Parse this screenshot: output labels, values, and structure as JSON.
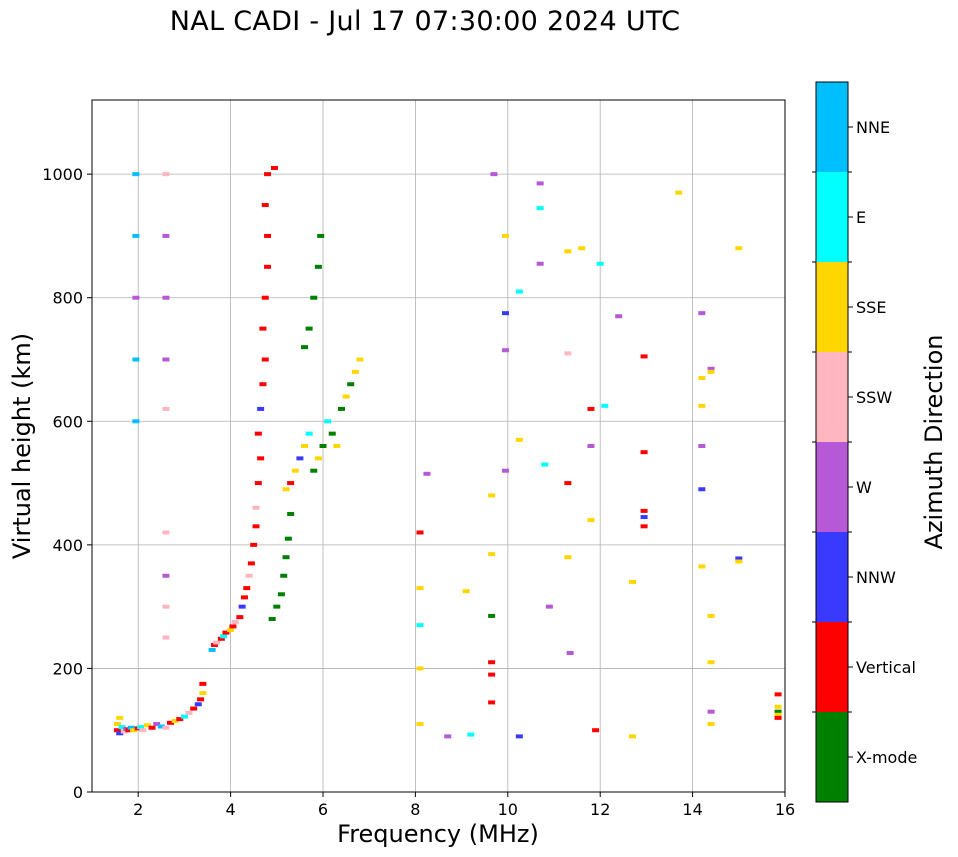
{
  "chart_data": {
    "type": "scatter",
    "title": "NAL CADI - Jul 17 07:30:00 2024 UTC",
    "xlabel": "Frequency (MHz)",
    "ylabel": "Virtual height (km)",
    "xlim": [
      1,
      16
    ],
    "ylim": [
      0,
      1120
    ],
    "xticks": [
      2,
      4,
      6,
      8,
      10,
      12,
      14,
      16
    ],
    "yticks": [
      0,
      200,
      400,
      600,
      800,
      1000
    ],
    "grid": true,
    "colorbar": {
      "label": "Azimuth Direction",
      "categories": [
        "X-mode",
        "Vertical",
        "NNW",
        "W",
        "SSW",
        "SSE",
        "E",
        "NNE"
      ],
      "colors": {
        "X-mode": "#008000",
        "Vertical": "#ff0000",
        "NNW": "#3a3aff",
        "W": "#b559d6",
        "SSW": "#ffb6c1",
        "SSE": "#ffd700",
        "E": "#00ffff",
        "NNE": "#00bfff"
      }
    },
    "points": [
      [
        1.55,
        100,
        "Vertical"
      ],
      [
        1.55,
        110,
        "SSE"
      ],
      [
        1.6,
        95,
        "NNW"
      ],
      [
        1.65,
        105,
        "E"
      ],
      [
        1.6,
        120,
        "SSE"
      ],
      [
        1.7,
        98,
        "SSW"
      ],
      [
        1.75,
        102,
        "W"
      ],
      [
        1.8,
        100,
        "Vertical"
      ],
      [
        1.85,
        104,
        "NNE"
      ],
      [
        1.9,
        100,
        "SSE"
      ],
      [
        2.0,
        103,
        "Vertical"
      ],
      [
        2.05,
        105,
        "E"
      ],
      [
        2.1,
        100,
        "SSW"
      ],
      [
        2.2,
        108,
        "SSE"
      ],
      [
        2.3,
        104,
        "Vertical"
      ],
      [
        2.4,
        110,
        "W"
      ],
      [
        2.5,
        106,
        "NNE"
      ],
      [
        2.6,
        104,
        "SSW"
      ],
      [
        2.7,
        112,
        "Vertical"
      ],
      [
        2.8,
        115,
        "SSE"
      ],
      [
        2.9,
        118,
        "Vertical"
      ],
      [
        3.0,
        122,
        "E"
      ],
      [
        3.1,
        128,
        "SSW"
      ],
      [
        3.2,
        135,
        "Vertical"
      ],
      [
        3.3,
        142,
        "NNW"
      ],
      [
        3.35,
        150,
        "Vertical"
      ],
      [
        3.4,
        160,
        "SSE"
      ],
      [
        3.4,
        175,
        "Vertical"
      ],
      [
        3.6,
        230,
        "NNE"
      ],
      [
        3.65,
        238,
        "Vertical"
      ],
      [
        3.7,
        242,
        "SSW"
      ],
      [
        3.8,
        248,
        "Vertical"
      ],
      [
        3.85,
        252,
        "E"
      ],
      [
        3.9,
        258,
        "Vertical"
      ],
      [
        4.0,
        262,
        "SSE"
      ],
      [
        4.05,
        268,
        "Vertical"
      ],
      [
        4.1,
        275,
        "SSW"
      ],
      [
        4.2,
        283,
        "Vertical"
      ],
      [
        4.25,
        300,
        "NNW"
      ],
      [
        4.3,
        315,
        "Vertical"
      ],
      [
        4.35,
        330,
        "Vertical"
      ],
      [
        4.4,
        350,
        "SSW"
      ],
      [
        4.45,
        370,
        "Vertical"
      ],
      [
        4.5,
        400,
        "Vertical"
      ],
      [
        4.55,
        430,
        "Vertical"
      ],
      [
        4.55,
        460,
        "SSW"
      ],
      [
        4.6,
        500,
        "Vertical"
      ],
      [
        4.65,
        540,
        "Vertical"
      ],
      [
        4.6,
        580,
        "Vertical"
      ],
      [
        4.65,
        620,
        "NNW"
      ],
      [
        4.7,
        660,
        "Vertical"
      ],
      [
        4.75,
        700,
        "Vertical"
      ],
      [
        4.7,
        750,
        "Vertical"
      ],
      [
        4.75,
        800,
        "Vertical"
      ],
      [
        4.8,
        850,
        "Vertical"
      ],
      [
        4.8,
        900,
        "Vertical"
      ],
      [
        4.75,
        950,
        "Vertical"
      ],
      [
        4.8,
        1000,
        "Vertical"
      ],
      [
        4.95,
        1010,
        "Vertical"
      ],
      [
        4.9,
        280,
        "X-mode"
      ],
      [
        5.0,
        300,
        "X-mode"
      ],
      [
        5.1,
        320,
        "X-mode"
      ],
      [
        5.15,
        350,
        "X-mode"
      ],
      [
        5.2,
        380,
        "X-mode"
      ],
      [
        5.25,
        410,
        "X-mode"
      ],
      [
        5.3,
        450,
        "X-mode"
      ],
      [
        5.2,
        490,
        "SSE"
      ],
      [
        5.3,
        500,
        "Vertical"
      ],
      [
        5.4,
        520,
        "SSE"
      ],
      [
        5.5,
        540,
        "NNW"
      ],
      [
        5.6,
        560,
        "SSE"
      ],
      [
        5.7,
        580,
        "E"
      ],
      [
        5.8,
        520,
        "X-mode"
      ],
      [
        5.9,
        540,
        "SSE"
      ],
      [
        6.0,
        560,
        "X-mode"
      ],
      [
        6.1,
        600,
        "E"
      ],
      [
        6.2,
        580,
        "X-mode"
      ],
      [
        6.3,
        560,
        "SSE"
      ],
      [
        6.4,
        620,
        "X-mode"
      ],
      [
        6.5,
        640,
        "SSE"
      ],
      [
        6.6,
        660,
        "X-mode"
      ],
      [
        6.7,
        680,
        "SSE"
      ],
      [
        6.8,
        700,
        "SSE"
      ],
      [
        5.6,
        720,
        "X-mode"
      ],
      [
        5.7,
        750,
        "X-mode"
      ],
      [
        5.8,
        800,
        "X-mode"
      ],
      [
        5.9,
        850,
        "X-mode"
      ],
      [
        5.95,
        900,
        "X-mode"
      ],
      [
        1.95,
        1000,
        "NNE"
      ],
      [
        1.95,
        900,
        "NNE"
      ],
      [
        1.95,
        800,
        "W"
      ],
      [
        1.95,
        700,
        "NNE"
      ],
      [
        1.95,
        600,
        "NNE"
      ],
      [
        2.6,
        1000,
        "SSW"
      ],
      [
        2.6,
        900,
        "W"
      ],
      [
        2.6,
        800,
        "W"
      ],
      [
        2.6,
        700,
        "W"
      ],
      [
        2.6,
        620,
        "SSW"
      ],
      [
        2.6,
        420,
        "SSW"
      ],
      [
        2.6,
        350,
        "W"
      ],
      [
        2.6,
        300,
        "SSW"
      ],
      [
        2.6,
        250,
        "SSW"
      ],
      [
        8.1,
        420,
        "Vertical"
      ],
      [
        8.1,
        330,
        "SSE"
      ],
      [
        8.1,
        270,
        "E"
      ],
      [
        8.1,
        200,
        "SSE"
      ],
      [
        8.1,
        110,
        "SSE"
      ],
      [
        8.25,
        515,
        "W"
      ],
      [
        8.7,
        90,
        "W"
      ],
      [
        9.2,
        93,
        "E"
      ],
      [
        9.1,
        325,
        "SSE"
      ],
      [
        9.65,
        210,
        "Vertical"
      ],
      [
        9.65,
        190,
        "Vertical"
      ],
      [
        9.65,
        145,
        "Vertical"
      ],
      [
        9.65,
        480,
        "SSE"
      ],
      [
        9.65,
        385,
        "SSE"
      ],
      [
        9.65,
        285,
        "X-mode"
      ],
      [
        9.7,
        1000,
        "W"
      ],
      [
        9.95,
        900,
        "SSE"
      ],
      [
        9.95,
        775,
        "NNW"
      ],
      [
        9.95,
        715,
        "W"
      ],
      [
        9.95,
        520,
        "W"
      ],
      [
        10.25,
        810,
        "E"
      ],
      [
        10.25,
        570,
        "SSE"
      ],
      [
        10.25,
        90,
        "NNW"
      ],
      [
        10.7,
        985,
        "W"
      ],
      [
        10.7,
        945,
        "E"
      ],
      [
        10.7,
        855,
        "W"
      ],
      [
        10.8,
        530,
        "E"
      ],
      [
        10.9,
        300,
        "W"
      ],
      [
        11.3,
        875,
        "SSE"
      ],
      [
        11.3,
        710,
        "SSW"
      ],
      [
        11.3,
        500,
        "Vertical"
      ],
      [
        11.3,
        380,
        "SSE"
      ],
      [
        11.35,
        225,
        "W"
      ],
      [
        11.6,
        880,
        "SSE"
      ],
      [
        11.8,
        620,
        "Vertical"
      ],
      [
        11.8,
        560,
        "W"
      ],
      [
        11.8,
        440,
        "SSE"
      ],
      [
        11.9,
        100,
        "Vertical"
      ],
      [
        12.0,
        855,
        "E"
      ],
      [
        12.1,
        625,
        "E"
      ],
      [
        12.4,
        770,
        "W"
      ],
      [
        12.7,
        340,
        "SSE"
      ],
      [
        12.7,
        90,
        "SSE"
      ],
      [
        12.95,
        705,
        "Vertical"
      ],
      [
        12.95,
        550,
        "Vertical"
      ],
      [
        12.95,
        455,
        "Vertical"
      ],
      [
        12.95,
        445,
        "NNW"
      ],
      [
        12.95,
        430,
        "Vertical"
      ],
      [
        13.7,
        970,
        "SSE"
      ],
      [
        14.2,
        775,
        "W"
      ],
      [
        14.2,
        670,
        "SSE"
      ],
      [
        14.2,
        625,
        "SSE"
      ],
      [
        14.2,
        560,
        "W"
      ],
      [
        14.2,
        490,
        "NNW"
      ],
      [
        14.2,
        365,
        "SSE"
      ],
      [
        14.4,
        685,
        "W"
      ],
      [
        14.4,
        680,
        "SSE"
      ],
      [
        14.4,
        285,
        "SSE"
      ],
      [
        14.4,
        210,
        "SSE"
      ],
      [
        14.4,
        130,
        "W"
      ],
      [
        14.4,
        110,
        "SSE"
      ],
      [
        15.0,
        880,
        "SSE"
      ],
      [
        15.0,
        378,
        "NNW"
      ],
      [
        15.0,
        373,
        "SSE"
      ],
      [
        15.85,
        158,
        "Vertical"
      ],
      [
        15.85,
        138,
        "SSE"
      ],
      [
        15.85,
        130,
        "X-mode"
      ],
      [
        15.85,
        125,
        "SSE"
      ],
      [
        15.85,
        120,
        "Vertical"
      ]
    ]
  }
}
